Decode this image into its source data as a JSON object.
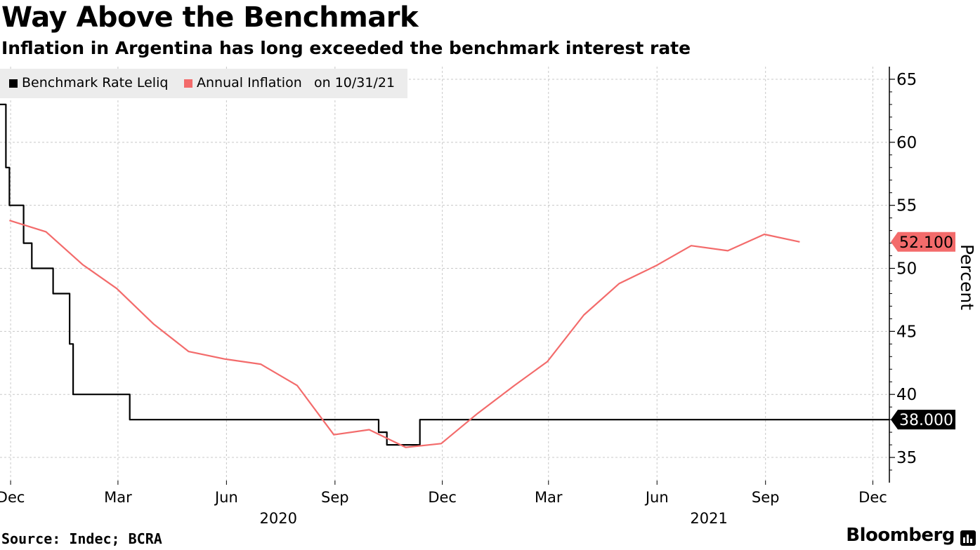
{
  "header": {
    "title": "Way Above the Benchmark",
    "subtitle": "Inflation in Argentina has long exceeded the benchmark interest rate"
  },
  "legend": {
    "series1": "Benchmark Rate Leliq",
    "series2": "Annual Inflation",
    "date_note": "on 10/31/21"
  },
  "footer": {
    "source": "Source: Indec; BCRA",
    "brand": "Bloomberg"
  },
  "colors": {
    "benchmark": "#000000",
    "inflation": "#f36b6b",
    "grid": "#c8c8c8",
    "legend_bg": "#ececec"
  },
  "chart_data": {
    "type": "line",
    "title": "Way Above the Benchmark",
    "subtitle": "Inflation in Argentina has long exceeded the benchmark interest rate",
    "xlabel": "",
    "ylabel": "Percent",
    "ylim": [
      33,
      66
    ],
    "yticks": [
      35,
      40,
      45,
      50,
      55,
      60,
      65
    ],
    "xlim": [
      "2019-11-22",
      "2021-12-15"
    ],
    "x_ticks": [
      {
        "date": "2019-12-01",
        "label": "Dec"
      },
      {
        "date": "2020-03-01",
        "label": "Mar"
      },
      {
        "date": "2020-06-01",
        "label": "Jun"
      },
      {
        "date": "2020-09-01",
        "label": "Sep"
      },
      {
        "date": "2020-12-01",
        "label": "Dec"
      },
      {
        "date": "2021-03-01",
        "label": "Mar"
      },
      {
        "date": "2021-06-01",
        "label": "Jun"
      },
      {
        "date": "2021-09-01",
        "label": "Sep"
      },
      {
        "date": "2021-12-01",
        "label": "Dec"
      }
    ],
    "year_labels": [
      {
        "date": "2020-07-15",
        "label": "2020"
      },
      {
        "date": "2021-07-15",
        "label": "2021"
      }
    ],
    "grid": true,
    "legend_position": "top-left",
    "series": [
      {
        "name": "Benchmark Rate Leliq",
        "step": true,
        "last_value_label": "38.000",
        "points": [
          [
            "2019-11-22",
            63
          ],
          [
            "2019-11-27",
            58
          ],
          [
            "2019-11-30",
            55
          ],
          [
            "2019-12-12",
            52
          ],
          [
            "2019-12-19",
            50
          ],
          [
            "2020-01-06",
            48
          ],
          [
            "2020-01-20",
            44
          ],
          [
            "2020-01-23",
            40
          ],
          [
            "2020-03-11",
            38
          ],
          [
            "2020-10-08",
            37
          ],
          [
            "2020-10-15",
            36
          ],
          [
            "2020-11-12",
            38
          ],
          [
            "2021-12-15",
            38
          ]
        ]
      },
      {
        "name": "Annual Inflation",
        "step": false,
        "last_value_label": "52.100",
        "points": [
          [
            "2019-11-30",
            53.8
          ],
          [
            "2019-12-31",
            52.9
          ],
          [
            "2020-01-31",
            50.3
          ],
          [
            "2020-02-29",
            48.4
          ],
          [
            "2020-03-31",
            45.6
          ],
          [
            "2020-04-30",
            43.4
          ],
          [
            "2020-05-31",
            42.8
          ],
          [
            "2020-06-30",
            42.4
          ],
          [
            "2020-07-31",
            40.7
          ],
          [
            "2020-08-31",
            36.8
          ],
          [
            "2020-09-30",
            37.2
          ],
          [
            "2020-10-31",
            35.8
          ],
          [
            "2020-11-30",
            36.1
          ],
          [
            "2020-12-31",
            38.5
          ],
          [
            "2021-01-31",
            40.7
          ],
          [
            "2021-02-28",
            42.6
          ],
          [
            "2021-03-31",
            46.3
          ],
          [
            "2021-04-30",
            48.8
          ],
          [
            "2021-05-31",
            50.2
          ],
          [
            "2021-06-30",
            51.8
          ],
          [
            "2021-07-31",
            51.4
          ],
          [
            "2021-08-31",
            52.7
          ],
          [
            "2021-09-30",
            52.1
          ]
        ]
      }
    ]
  }
}
